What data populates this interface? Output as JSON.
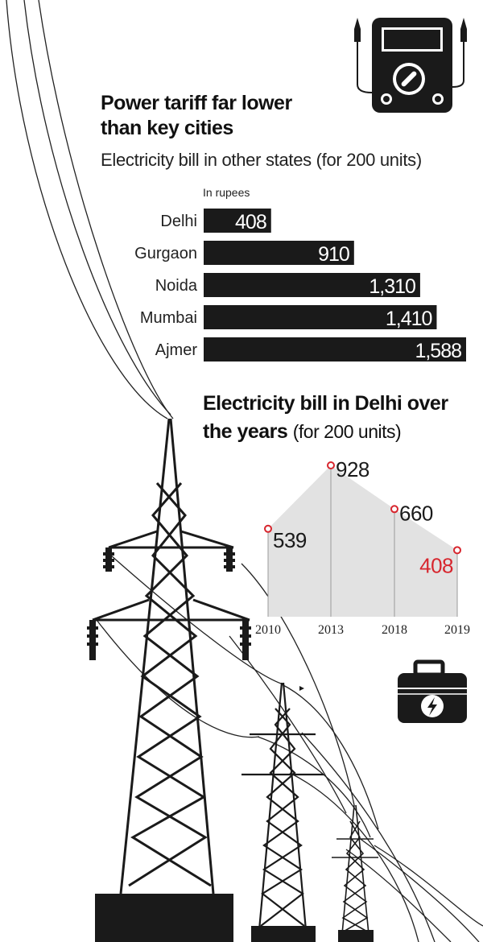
{
  "chart_data": [
    {
      "type": "bar",
      "title_line1": "Power tariff far lower",
      "title_line2": "than key cities",
      "subtitle": "Electricity bill in other states (for 200 units)",
      "unit_label": "In rupees",
      "categories": [
        "Delhi",
        "Gurgaon",
        "Noida",
        "Mumbai",
        "Ajmer"
      ],
      "values": [
        408,
        910,
        1310,
        1410,
        1588
      ],
      "value_labels": [
        "408",
        "910",
        "1,310",
        "1,410",
        "1,588"
      ],
      "bar_color": "#1a1a1a"
    },
    {
      "type": "area",
      "title_bold": "Electricity bill in Delhi over the years",
      "title_suffix": "(for 200 units)",
      "x": [
        "2010",
        "2013",
        "2018",
        "2019"
      ],
      "values": [
        539,
        928,
        660,
        408
      ],
      "value_labels": [
        "539",
        "928",
        "660",
        "408"
      ],
      "highlight_index": 3,
      "highlight_color": "#d7262e",
      "fill_color": "#e2e2e2",
      "marker_color": "#d7262e"
    }
  ],
  "icons": [
    "multimeter-icon",
    "power-toolbox-icon",
    "transmission-tower-illustration"
  ]
}
